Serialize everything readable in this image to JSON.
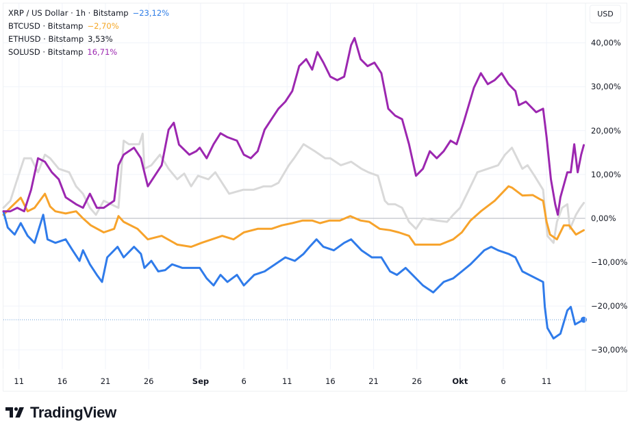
{
  "legend": [
    {
      "label": "XRP / US Dollar · 1h · Bitstamp",
      "change": "−23,12%",
      "color": "#2d7ce6"
    },
    {
      "label": "BTCUSD · Bitstamp",
      "change": "−2,70%",
      "color": "#f5a623"
    },
    {
      "label": "ETHUSD · Bitstamp",
      "change": "3,53%",
      "color": "#131722"
    },
    {
      "label": "SOLUSD · Bitstamp",
      "change": "16,71%",
      "color": "#9c27b0"
    }
  ],
  "currency_button": "USD",
  "brand": "TradingView",
  "chart_data": {
    "type": "line",
    "title": "XRP / US Dollar · 1h · Bitstamp (percent comparison)",
    "xlabel": "",
    "ylabel": "",
    "x_unit": "days since Aug 11",
    "xlim": [
      -1.8,
      65.5
    ],
    "ylim": [
      -34.5,
      49
    ],
    "grid": true,
    "legend_position": "top-left",
    "x_ticks": [
      {
        "day": 0,
        "label": "11"
      },
      {
        "day": 5,
        "label": "16"
      },
      {
        "day": 10,
        "label": "21"
      },
      {
        "day": 15,
        "label": "26"
      },
      {
        "day": 21,
        "label": "Sep"
      },
      {
        "day": 26,
        "label": "6"
      },
      {
        "day": 31,
        "label": "11"
      },
      {
        "day": 36,
        "label": "16"
      },
      {
        "day": 41,
        "label": "21"
      },
      {
        "day": 46,
        "label": "26"
      },
      {
        "day": 51,
        "label": "Okt"
      },
      {
        "day": 56,
        "label": "6"
      },
      {
        "day": 61,
        "label": "11"
      }
    ],
    "y_ticks": [
      {
        "value": 40,
        "label": "40,00%"
      },
      {
        "value": 30,
        "label": "30,00%"
      },
      {
        "value": 20,
        "label": "20,00%"
      },
      {
        "value": 10,
        "label": "10,00%"
      },
      {
        "value": 0,
        "label": "0,00%"
      },
      {
        "value": -10,
        "label": "−10,00%"
      },
      {
        "value": -20,
        "label": "−20,00%"
      },
      {
        "value": -30,
        "label": "−30,00%"
      }
    ],
    "baseline": 0,
    "last_value_marker": {
      "series": "XRP / US Dollar",
      "value": -23.12
    },
    "series": [
      {
        "name": "ETHUSD",
        "color": "#d9d9d9",
        "x": [
          -1.8,
          -1.0,
          -0.2,
          0.6,
          1.4,
          2.2,
          3.0,
          3.6,
          4.6,
          5.8,
          6.6,
          7.4,
          8.2,
          8.9,
          9.8,
          11.5,
          12.1,
          12.7,
          13.9,
          14.3,
          14.5,
          15.3,
          16.3,
          17.3,
          18.3,
          19.1,
          19.9,
          20.7,
          21.9,
          22.7,
          24.3,
          25.9,
          27.1,
          28.3,
          29.2,
          30.0,
          31.2,
          31.8,
          32.9,
          34.2,
          35.4,
          36.0,
          37.2,
          38.4,
          39.6,
          40.4,
          41.5,
          42.3,
          42.7,
          43.5,
          44.3,
          45.1,
          45.9,
          46.7,
          48.3,
          49.5,
          50.2,
          51.0,
          51.8,
          53.0,
          54.2,
          55.4,
          56.2,
          57.0,
          57.6,
          58.2,
          58.8,
          59.6,
          60.6,
          61.1,
          61.8,
          62.2,
          62.8,
          63.4,
          63.7,
          64.4,
          64.9,
          65.3
        ],
        "y": [
          2.4,
          4.0,
          8.9,
          13.7,
          13.7,
          10.5,
          14.5,
          13.7,
          11.3,
          10.5,
          7.3,
          5.6,
          2.4,
          0.8,
          4.0,
          2.4,
          17.7,
          16.9,
          16.9,
          19.3,
          11.3,
          12.1,
          14.5,
          11.3,
          8.9,
          10.2,
          7.3,
          9.7,
          8.9,
          10.5,
          5.6,
          6.5,
          6.5,
          7.3,
          7.3,
          8.1,
          12.1,
          13.7,
          16.9,
          15.3,
          13.7,
          13.7,
          12.1,
          12.9,
          11.3,
          10.5,
          9.7,
          4.0,
          3.2,
          3.2,
          2.4,
          -0.8,
          -2.4,
          0.0,
          -0.5,
          -0.8,
          0.8,
          2.4,
          5.6,
          10.5,
          11.3,
          12.1,
          14.5,
          16.1,
          13.7,
          11.3,
          12.1,
          9.7,
          6.5,
          -4.0,
          -5.6,
          -0.8,
          2.4,
          3.2,
          -2.4,
          0.8,
          2.4,
          3.5
        ]
      },
      {
        "name": "BTCUSD",
        "color": "#f7a32b",
        "x": [
          -1.8,
          -1.0,
          0.2,
          1.0,
          1.8,
          3.0,
          3.6,
          4.2,
          5.4,
          6.6,
          7.4,
          8.3,
          9.8,
          11.0,
          11.5,
          12.1,
          13.7,
          14.9,
          16.5,
          18.3,
          19.9,
          21.1,
          22.3,
          23.5,
          24.8,
          26.0,
          27.6,
          28.4,
          29.2,
          30.4,
          31.6,
          32.8,
          33.9,
          34.8,
          35.9,
          37.1,
          38.3,
          39.5,
          40.5,
          41.7,
          42.9,
          43.9,
          45.1,
          45.8,
          47.1,
          48.7,
          50.2,
          51.2,
          52.2,
          53.4,
          55.0,
          56.6,
          57.0,
          58.2,
          59.4,
          60.2,
          60.6,
          61.0,
          61.4,
          62.2,
          63.0,
          63.6,
          64.4,
          65.3
        ],
        "y": [
          0.8,
          2.4,
          4.7,
          1.6,
          2.4,
          5.6,
          2.7,
          1.6,
          1.1,
          1.6,
          0.0,
          -1.6,
          -3.2,
          -2.4,
          0.5,
          -0.8,
          -2.4,
          -4.8,
          -4.0,
          -6.0,
          -6.5,
          -5.6,
          -4.8,
          -4.0,
          -4.8,
          -3.2,
          -2.4,
          -2.4,
          -2.4,
          -1.6,
          -1.1,
          -0.5,
          -0.5,
          -1.1,
          -0.5,
          -0.5,
          0.5,
          -0.5,
          -0.8,
          -2.4,
          -2.7,
          -3.2,
          -4.0,
          -6.0,
          -6.0,
          -6.0,
          -4.8,
          -3.2,
          -0.5,
          1.6,
          4.0,
          7.3,
          7.0,
          5.2,
          5.3,
          4.4,
          4.0,
          -0.8,
          -3.7,
          -4.8,
          -1.6,
          -1.6,
          -3.7,
          -2.7
        ]
      },
      {
        "name": "XRP / US Dollar",
        "color": "#2f7bea",
        "x": [
          -1.8,
          -1.3,
          -0.5,
          0.2,
          1.0,
          1.8,
          2.8,
          3.3,
          4.2,
          5.4,
          6.2,
          7.0,
          7.4,
          8.2,
          9.0,
          9.6,
          10.2,
          11.4,
          12.1,
          13.3,
          14.1,
          14.5,
          15.3,
          16.1,
          16.9,
          17.7,
          18.9,
          20.9,
          21.7,
          22.5,
          23.3,
          24.1,
          25.2,
          26.0,
          27.2,
          28.4,
          29.6,
          30.8,
          31.9,
          32.9,
          33.6,
          34.4,
          35.2,
          36.4,
          37.6,
          38.4,
          39.6,
          40.8,
          41.9,
          42.9,
          43.7,
          44.7,
          45.5,
          46.7,
          47.9,
          49.1,
          50.2,
          51.2,
          52.2,
          53.0,
          53.8,
          54.6,
          55.4,
          56.6,
          57.4,
          58.2,
          60.6,
          60.8,
          61.1,
          61.8,
          62.6,
          63.4,
          63.8,
          64.3,
          65.0,
          65.3
        ],
        "y": [
          1.6,
          -2.1,
          -3.7,
          -1.1,
          -4.0,
          -5.6,
          0.8,
          -4.8,
          -5.6,
          -4.8,
          -7.3,
          -9.7,
          -7.3,
          -10.5,
          -12.9,
          -14.5,
          -8.9,
          -6.5,
          -8.9,
          -6.5,
          -8.1,
          -11.3,
          -9.7,
          -12.1,
          -11.8,
          -10.5,
          -11.3,
          -11.3,
          -13.7,
          -15.3,
          -12.9,
          -14.5,
          -12.9,
          -15.3,
          -12.9,
          -12.1,
          -10.5,
          -8.9,
          -9.7,
          -8.1,
          -6.5,
          -4.8,
          -6.5,
          -7.3,
          -5.6,
          -4.8,
          -7.3,
          -8.9,
          -8.9,
          -12.1,
          -12.9,
          -11.3,
          -12.9,
          -15.3,
          -16.9,
          -14.5,
          -13.7,
          -12.1,
          -10.5,
          -8.9,
          -7.3,
          -6.5,
          -7.3,
          -8.1,
          -8.9,
          -12.1,
          -14.5,
          -20.2,
          -25.0,
          -27.4,
          -26.3,
          -21.0,
          -20.2,
          -24.2,
          -23.4,
          -23.1
        ]
      },
      {
        "name": "SOLUSD",
        "color": "#9c27b0",
        "x": [
          -1.8,
          -1.0,
          -0.2,
          0.6,
          1.4,
          2.2,
          3.0,
          3.8,
          4.6,
          5.4,
          6.6,
          7.4,
          8.2,
          9.0,
          9.8,
          11.0,
          11.5,
          12.1,
          13.3,
          14.1,
          14.9,
          15.7,
          16.5,
          17.3,
          17.9,
          18.5,
          19.7,
          20.5,
          20.9,
          21.7,
          22.5,
          23.3,
          24.1,
          25.2,
          26.0,
          26.8,
          27.6,
          28.4,
          29.2,
          30.0,
          30.8,
          31.6,
          32.4,
          33.2,
          33.9,
          34.5,
          35.2,
          36.0,
          36.8,
          37.6,
          38.4,
          38.8,
          39.5,
          40.3,
          41.1,
          41.9,
          42.7,
          43.5,
          44.3,
          45.1,
          45.9,
          46.7,
          47.5,
          48.3,
          49.1,
          49.9,
          50.6,
          51.4,
          52.6,
          53.4,
          54.2,
          55.0,
          55.8,
          56.6,
          57.4,
          57.8,
          58.6,
          59.8,
          60.6,
          61.0,
          61.5,
          62.0,
          62.3,
          62.6,
          63.4,
          63.8,
          64.2,
          64.6,
          65.0,
          65.3
        ],
        "y": [
          1.6,
          1.6,
          2.4,
          1.6,
          6.5,
          13.7,
          12.9,
          10.5,
          8.9,
          4.8,
          3.2,
          2.4,
          5.6,
          2.4,
          2.4,
          4.0,
          12.1,
          14.5,
          16.1,
          13.7,
          7.3,
          9.7,
          12.1,
          20.2,
          21.8,
          16.8,
          14.5,
          15.3,
          16.1,
          13.7,
          16.9,
          19.4,
          18.5,
          17.7,
          14.5,
          13.7,
          15.3,
          20.2,
          22.6,
          25.0,
          26.6,
          29.0,
          34.7,
          36.3,
          33.9,
          37.9,
          35.5,
          32.3,
          31.5,
          32.3,
          39.5,
          41.1,
          36.3,
          34.7,
          35.5,
          33.1,
          25.0,
          23.4,
          22.6,
          16.9,
          9.7,
          11.3,
          15.3,
          13.7,
          15.3,
          17.7,
          16.9,
          21.8,
          29.8,
          33.1,
          30.6,
          31.5,
          33.1,
          30.6,
          29.0,
          25.8,
          26.6,
          24.2,
          25.0,
          18.5,
          8.9,
          3.2,
          0.8,
          4.8,
          10.5,
          10.5,
          16.9,
          10.5,
          14.5,
          16.7
        ]
      }
    ]
  }
}
